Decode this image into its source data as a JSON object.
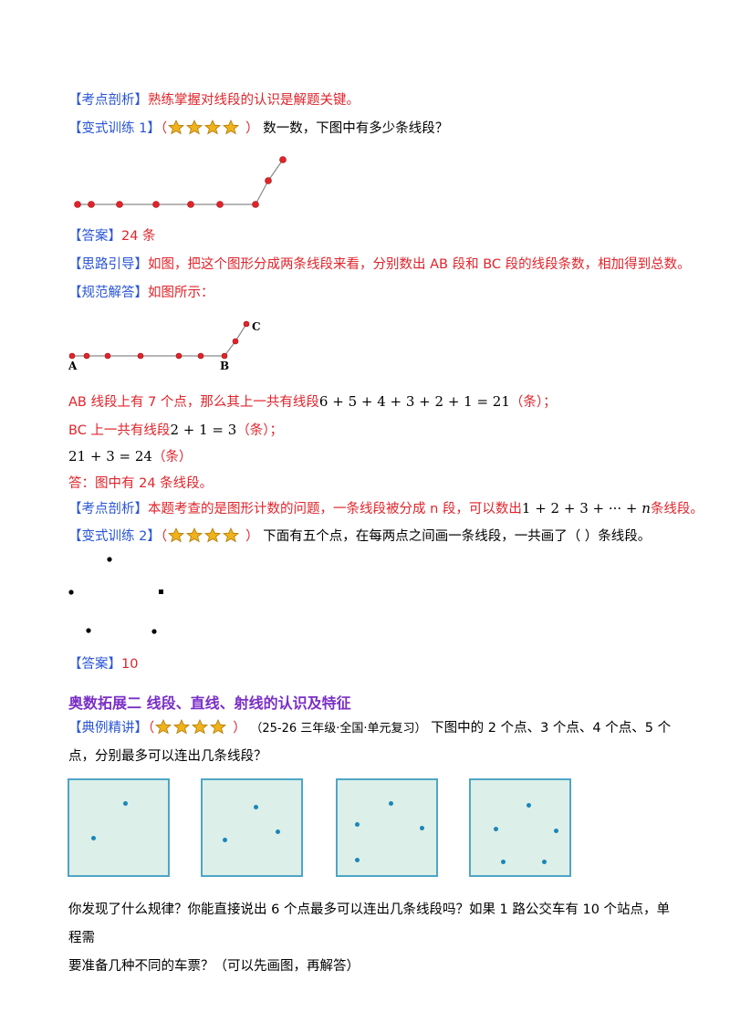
{
  "p1": {
    "tag": "【考点剖析】",
    "text": "熟练掌握对线段的认识是解题关键。"
  },
  "p2": {
    "tag": "【变式训练 1】",
    "paren_open": "（",
    "paren_close": "）",
    "text": "数一数，下图中有多少条线段？"
  },
  "p3": {
    "tag": "【答案】",
    "text": "24 条"
  },
  "p4": {
    "tag": "【思路引导】",
    "text": "如图，把这个图形分成两条线段来看，分别数出 AB 段和 BC 段的线段条数，相加得到总数。"
  },
  "p5": {
    "tag": "【规范解答】",
    "text": "如图所示："
  },
  "fig2_labels": {
    "a": "A",
    "b": "B",
    "c": "C"
  },
  "p6": {
    "pre": "AB 线段上有 7 个点，那么其上一共有线段",
    "math": "6 + 5 + 4 + 3 + 2 + 1 = 21",
    "post": "（条）；"
  },
  "p7": {
    "pre": "BC 上一共有线段",
    "math": "2 + 1 = 3",
    "post": "（条）；"
  },
  "p8": {
    "math": "21 + 3 = 24",
    "post": "（条）"
  },
  "p9": {
    "text": "答：图中有 24 条线段。"
  },
  "p10": {
    "tag": "【考点剖析】",
    "pre": "本题考查的是图形计数的问题，一条线段被分成 n 段，可以数出",
    "math": "1 + 2 + 3 + ··· + ",
    "n": "n",
    "post": "条线段。"
  },
  "p11": {
    "tag": "【变式训练 2】",
    "paren_open": "（",
    "paren_close": "）",
    "text": "下面有五个点，在每两点之间画一条线段，一共画了（          ）条线段。"
  },
  "p12": {
    "tag": "【答案】",
    "text": "10"
  },
  "section": {
    "title": "奥数拓展二  线段、直线、射线的认识及特征"
  },
  "p13": {
    "tag": "【典例精讲】",
    "paren_open": "（",
    "paren_close": "）",
    "source": "（25-26 三年级·全国·单元复习）",
    "text1": "下图中的 2 个点、3 个点、4 个点、5 个",
    "text2": "点，分别最多可以连出几条线段？"
  },
  "p14": {
    "line1": "你发现了什么规律？你能直接说出 6 个点最多可以连出几条线段吗？如果 1 路公交车有 10 个站点，单程需",
    "line2": "要准备几种不同的车票？（可以先画图，再解答）"
  },
  "colors": {
    "tag": "#2a55d6",
    "red": "#e0242b",
    "purple": "#7a2fc6",
    "star": "#f0b21a",
    "box_fill": "#dcefe9",
    "box_border": "#4ea6c6",
    "point": "#1b86b7"
  }
}
